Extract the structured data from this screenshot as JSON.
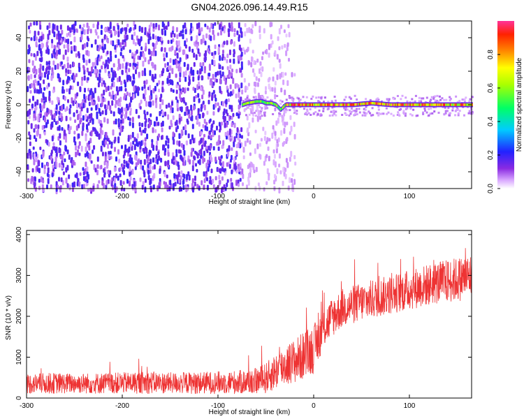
{
  "title": "GN04.2026.096.14.49.R15",
  "chart_data": [
    {
      "type": "heatmap",
      "xlabel": "Height of straight line (km)",
      "ylabel": "Frequency (Hz)",
      "xlim": [
        -300,
        165
      ],
      "ylim": [
        -50,
        50
      ],
      "x_ticks": [
        -300,
        -200,
        -100,
        0,
        100
      ],
      "y_ticks": [
        -40,
        -20,
        0,
        20,
        40
      ],
      "colorbar": {
        "label": "Normalized spectral amplitude",
        "range": [
          0,
          1
        ],
        "ticks": [
          0.0,
          0.2,
          0.4,
          0.6,
          0.8
        ]
      },
      "regions": [
        {
          "x": [
            -300,
            -75
          ],
          "description_value": "noise",
          "amplitude": [
            0.05,
            0.25
          ]
        },
        {
          "x": [
            -75,
            -20
          ],
          "amplitude": [
            0.0,
            0.1
          ]
        },
        {
          "x": [
            -75,
            165
          ],
          "freq_center": 0,
          "amplitude": [
            0.3,
            1.0
          ]
        }
      ],
      "signal_line": {
        "x": [
          -75,
          -70,
          -60,
          -55,
          -50,
          -45,
          -40,
          -35,
          -30,
          -20,
          0,
          20,
          40,
          60,
          80,
          100,
          120,
          140,
          165
        ],
        "freq": [
          0,
          1,
          2,
          2,
          1,
          1,
          0,
          -3,
          0,
          0,
          0,
          0,
          0,
          1,
          0,
          0,
          0,
          0,
          0
        ]
      }
    },
    {
      "type": "line",
      "xlabel": "Height of straight line (km)",
      "ylabel": "SNR (10 * v/v)",
      "xlim": [
        -300,
        165
      ],
      "ylim": [
        0,
        4100
      ],
      "x_ticks": [
        -300,
        -200,
        -100,
        0,
        100
      ],
      "y_ticks": [
        0,
        1000,
        2000,
        3000,
        4000
      ],
      "color": "#ee3333",
      "series": [
        {
          "x": [
            -300,
            -275,
            -250,
            -225,
            -200,
            -175,
            -150,
            -125,
            -100,
            -75,
            -60,
            -50,
            -40,
            -30,
            -20,
            -10,
            0,
            10,
            20,
            30,
            50,
            75,
            100,
            125,
            150,
            165
          ],
          "center": [
            350,
            360,
            360,
            360,
            370,
            380,
            370,
            370,
            380,
            390,
            420,
            480,
            650,
            800,
            900,
            1050,
            1200,
            1700,
            2000,
            2200,
            2350,
            2500,
            2650,
            2800,
            2900,
            3000
          ],
          "spread": [
            250,
            260,
            250,
            260,
            260,
            280,
            260,
            270,
            280,
            300,
            320,
            380,
            450,
            500,
            550,
            600,
            600,
            500,
            500,
            480,
            480,
            480,
            500,
            520,
            550,
            550
          ]
        }
      ]
    }
  ]
}
